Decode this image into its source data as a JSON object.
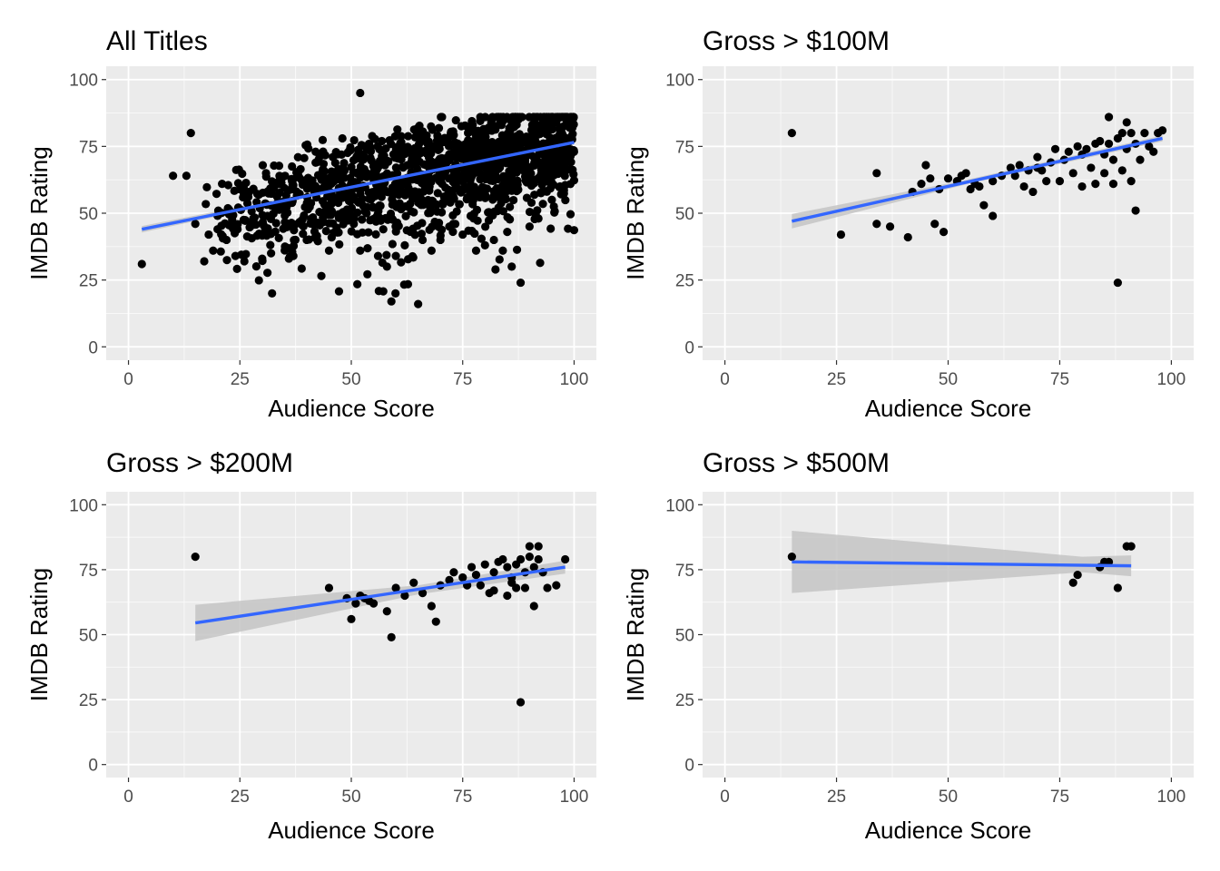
{
  "chart_data": [
    {
      "type": "scatter",
      "title": "All Titles",
      "xlabel": "Audience Score",
      "ylabel": "IMDB Rating",
      "xlim": [
        -5,
        105
      ],
      "ylim": [
        -5,
        105
      ],
      "xticks": [
        0,
        25,
        50,
        75,
        100
      ],
      "yticks": [
        0,
        25,
        50,
        75,
        100
      ],
      "grid": true,
      "smooth": {
        "method": "lm",
        "x": [
          3,
          100
        ],
        "y": [
          44,
          76.5
        ],
        "se_band": [
          [
            3,
            42.8,
            45.2
          ],
          [
            50,
            59.4,
            60.6
          ],
          [
            100,
            75.6,
            77.4
          ]
        ]
      },
      "point_summary": {
        "cloud": {
          "x_range": [
            17,
            100
          ],
          "trend_y_at_x_min": 47,
          "trend_y_at_x_max": 77,
          "spread": 9
        }
      },
      "points": [
        [
          3,
          31
        ],
        [
          10,
          64
        ],
        [
          13,
          64
        ],
        [
          14,
          80
        ],
        [
          15,
          46
        ],
        [
          17,
          32
        ],
        [
          18,
          42
        ],
        [
          19,
          36
        ],
        [
          20,
          44
        ],
        [
          21,
          61
        ],
        [
          22,
          40
        ],
        [
          24,
          34
        ],
        [
          26,
          32
        ],
        [
          28,
          48
        ],
        [
          30,
          33
        ],
        [
          32,
          35
        ],
        [
          36,
          33
        ],
        [
          37,
          34
        ],
        [
          40,
          40
        ],
        [
          42,
          73
        ],
        [
          45,
          36
        ],
        [
          48,
          78
        ],
        [
          52,
          95
        ],
        [
          52,
          36
        ],
        [
          54,
          76
        ],
        [
          56,
          34
        ],
        [
          58,
          30
        ],
        [
          59,
          17
        ],
        [
          60,
          34
        ],
        [
          62,
          38
        ],
        [
          65,
          16
        ],
        [
          66,
          40
        ],
        [
          68,
          36
        ],
        [
          70,
          40
        ],
        [
          72,
          45
        ],
        [
          75,
          42
        ],
        [
          78,
          36
        ],
        [
          80,
          38
        ],
        [
          82,
          40
        ],
        [
          84,
          36
        ],
        [
          85,
          43
        ],
        [
          86,
          30
        ],
        [
          88,
          24
        ],
        [
          90,
          45
        ],
        [
          92,
          48
        ],
        [
          93,
          82
        ],
        [
          95,
          55
        ],
        [
          96,
          84
        ],
        [
          98,
          86
        ],
        [
          99,
          82
        ]
      ]
    },
    {
      "type": "scatter",
      "title": "Gross > $100M",
      "xlabel": "Audience Score",
      "ylabel": "IMDB Rating",
      "xlim": [
        -5,
        105
      ],
      "ylim": [
        -5,
        105
      ],
      "xticks": [
        0,
        25,
        50,
        75,
        100
      ],
      "yticks": [
        0,
        25,
        50,
        75,
        100
      ],
      "grid": true,
      "smooth": {
        "method": "lm",
        "x": [
          15,
          98
        ],
        "y": [
          47,
          78
        ],
        "se_band": [
          [
            15,
            44.3,
            49.7
          ],
          [
            55,
            61.2,
            62.8
          ],
          [
            98,
            76.9,
            79.1
          ]
        ]
      },
      "points": [
        [
          15,
          80
        ],
        [
          26,
          42
        ],
        [
          34,
          65
        ],
        [
          34,
          46
        ],
        [
          37,
          45
        ],
        [
          41,
          41
        ],
        [
          44,
          61
        ],
        [
          45,
          68
        ],
        [
          47,
          46
        ],
        [
          48,
          59
        ],
        [
          49,
          43
        ],
        [
          50,
          63
        ],
        [
          52,
          62
        ],
        [
          54,
          65
        ],
        [
          55,
          59
        ],
        [
          57,
          60
        ],
        [
          58,
          53
        ],
        [
          60,
          49
        ],
        [
          62,
          64
        ],
        [
          64,
          67
        ],
        [
          66,
          68
        ],
        [
          67,
          60
        ],
        [
          68,
          66
        ],
        [
          69,
          58
        ],
        [
          70,
          71
        ],
        [
          71,
          66
        ],
        [
          72,
          62
        ],
        [
          73,
          69
        ],
        [
          74,
          74
        ],
        [
          75,
          62
        ],
        [
          76,
          70
        ],
        [
          77,
          73
        ],
        [
          78,
          65
        ],
        [
          79,
          75
        ],
        [
          80,
          72
        ],
        [
          80,
          60
        ],
        [
          81,
          74
        ],
        [
          82,
          67
        ],
        [
          83,
          76
        ],
        [
          83,
          61
        ],
        [
          84,
          77
        ],
        [
          85,
          72
        ],
        [
          85,
          65
        ],
        [
          86,
          86
        ],
        [
          86,
          76
        ],
        [
          87,
          70
        ],
        [
          87,
          61
        ],
        [
          88,
          24
        ],
        [
          88,
          78
        ],
        [
          89,
          80
        ],
        [
          89,
          66
        ],
        [
          90,
          84
        ],
        [
          90,
          74
        ],
        [
          91,
          62
        ],
        [
          91,
          80
        ],
        [
          92,
          51
        ],
        [
          92,
          76
        ],
        [
          93,
          70
        ],
        [
          94,
          80
        ],
        [
          95,
          75
        ],
        [
          96,
          73
        ],
        [
          97,
          80
        ],
        [
          98,
          81
        ],
        [
          70,
          67
        ],
        [
          65,
          64
        ],
        [
          60,
          62
        ],
        [
          56,
          61
        ],
        [
          53,
          64
        ],
        [
          46,
          63
        ],
        [
          42,
          58
        ]
      ]
    },
    {
      "type": "scatter",
      "title": "Gross > $200M",
      "xlabel": "Audience Score",
      "ylabel": "IMDB Rating",
      "xlim": [
        -5,
        105
      ],
      "ylim": [
        -5,
        105
      ],
      "xticks": [
        0,
        25,
        50,
        75,
        100
      ],
      "yticks": [
        0,
        25,
        50,
        75,
        100
      ],
      "grid": true,
      "smooth": {
        "method": "lm",
        "x": [
          15,
          98
        ],
        "y": [
          54.5,
          76
        ],
        "se_band": [
          [
            15,
            47.5,
            61.5
          ],
          [
            65,
            65.5,
            69
          ],
          [
            98,
            73.5,
            78.5
          ]
        ]
      },
      "points": [
        [
          15,
          80
        ],
        [
          45,
          68
        ],
        [
          49,
          64
        ],
        [
          50,
          56
        ],
        [
          51,
          62
        ],
        [
          52,
          65
        ],
        [
          53,
          64
        ],
        [
          54,
          63
        ],
        [
          55,
          62
        ],
        [
          58,
          59
        ],
        [
          59,
          49
        ],
        [
          60,
          68
        ],
        [
          62,
          65
        ],
        [
          64,
          70
        ],
        [
          66,
          66
        ],
        [
          68,
          61
        ],
        [
          69,
          55
        ],
        [
          70,
          69
        ],
        [
          72,
          71
        ],
        [
          73,
          74
        ],
        [
          75,
          72
        ],
        [
          76,
          69
        ],
        [
          77,
          76
        ],
        [
          78,
          73
        ],
        [
          79,
          69
        ],
        [
          80,
          77
        ],
        [
          81,
          66
        ],
        [
          82,
          74
        ],
        [
          82,
          67
        ],
        [
          83,
          78
        ],
        [
          84,
          79
        ],
        [
          85,
          76
        ],
        [
          85,
          65
        ],
        [
          86,
          72
        ],
        [
          86,
          70
        ],
        [
          87,
          77
        ],
        [
          87,
          68
        ],
        [
          88,
          24
        ],
        [
          88,
          79
        ],
        [
          89,
          74
        ],
        [
          89,
          68
        ],
        [
          90,
          84
        ],
        [
          90,
          80
        ],
        [
          91,
          76
        ],
        [
          91,
          61
        ],
        [
          92,
          84
        ],
        [
          92,
          79
        ],
        [
          93,
          74
        ],
        [
          94,
          68
        ],
        [
          96,
          69
        ],
        [
          98,
          79
        ]
      ]
    },
    {
      "type": "scatter",
      "title": "Gross > $500M",
      "xlabel": "Audience Score",
      "ylabel": "IMDB Rating",
      "xlim": [
        -5,
        105
      ],
      "ylim": [
        -5,
        105
      ],
      "xticks": [
        0,
        25,
        50,
        75,
        100
      ],
      "yticks": [
        0,
        25,
        50,
        75,
        100
      ],
      "grid": true,
      "smooth": {
        "method": "lm",
        "x": [
          15,
          91
        ],
        "y": [
          78,
          76.5
        ],
        "se_band": [
          [
            15,
            66,
            90
          ],
          [
            80,
            74,
            80
          ],
          [
            91,
            72.5,
            80.5
          ]
        ]
      },
      "points": [
        [
          15,
          80
        ],
        [
          78,
          70
        ],
        [
          79,
          73
        ],
        [
          84,
          76
        ],
        [
          85,
          78
        ],
        [
          86,
          78
        ],
        [
          88,
          68
        ],
        [
          90,
          84
        ],
        [
          91,
          84
        ]
      ]
    }
  ]
}
